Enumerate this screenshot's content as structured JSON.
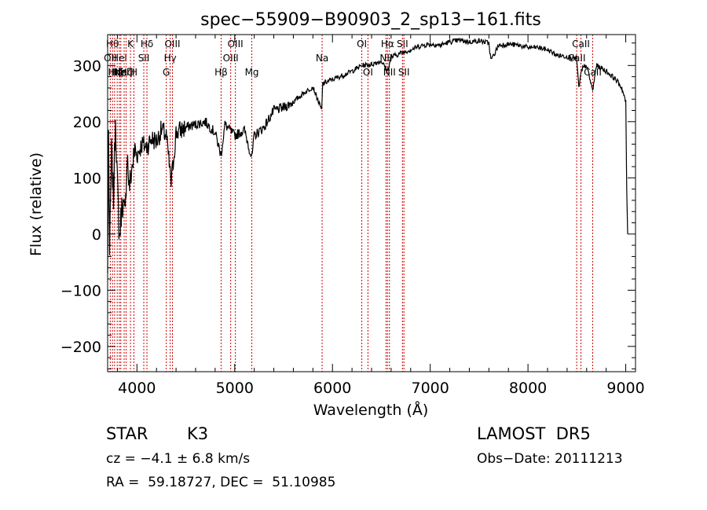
{
  "chart_data": {
    "type": "line",
    "title": "spec−55909−B90903_2_sp13−161.fits",
    "xlabel": "Wavelength (Å)",
    "ylabel": "Flux (relative)",
    "xlim": [
      3700,
      9100
    ],
    "ylim": [
      -245,
      355
    ],
    "x_ticks": [
      4000,
      5000,
      6000,
      7000,
      8000,
      9000
    ],
    "y_ticks": [
      -200,
      -100,
      0,
      100,
      200,
      300
    ],
    "x_tick_labels": [
      "4000",
      "5000",
      "6000",
      "7000",
      "8000",
      "9000"
    ],
    "y_tick_labels": [
      "−200",
      "−100",
      "0",
      "100",
      "200",
      "300"
    ],
    "grid": false,
    "line_color": "#000000",
    "marker_color": "#cc0000",
    "series": [
      {
        "x": [
          3700,
          3710,
          3720,
          3740,
          3760,
          3780,
          3800,
          3820,
          3850,
          3880,
          3900,
          3920,
          3950,
          3980,
          4000,
          4050,
          4100,
          4150,
          4200,
          4250,
          4300,
          4350,
          4400,
          4500,
          4600,
          4700,
          4800,
          4860,
          4900,
          5000,
          5100,
          5175,
          5200,
          5300,
          5400,
          5500,
          5600,
          5700,
          5800,
          5890,
          5900,
          6000,
          6100,
          6200,
          6300,
          6400,
          6500,
          6563,
          6600,
          6700,
          6800,
          6900,
          7000,
          7100,
          7200,
          7300,
          7400,
          7500,
          7600,
          7620,
          7650,
          7700,
          7800,
          7900,
          8000,
          8100,
          8200,
          8300,
          8400,
          8498,
          8520,
          8542,
          8560,
          8600,
          8662,
          8700,
          8800,
          8900,
          8960,
          9000,
          9010,
          9020
        ],
        "y": [
          -70,
          180,
          -40,
          150,
          60,
          210,
          90,
          -10,
          60,
          30,
          150,
          80,
          120,
          150,
          140,
          160,
          155,
          170,
          165,
          185,
          175,
          90,
          180,
          190,
          195,
          200,
          180,
          140,
          195,
          175,
          185,
          135,
          175,
          190,
          220,
          225,
          235,
          250,
          262,
          220,
          268,
          275,
          282,
          290,
          300,
          302,
          308,
          290,
          315,
          322,
          328,
          335,
          338,
          336,
          342,
          345,
          342,
          344,
          340,
          310,
          318,
          336,
          338,
          336,
          332,
          332,
          328,
          318,
          316,
          312,
          260,
          285,
          295,
          300,
          255,
          300,
          290,
          275,
          260,
          235,
          80,
          0
        ]
      }
    ],
    "line_markers": [
      {
        "wl": 3727,
        "label": "OII",
        "row": 2
      },
      {
        "wl": 3750,
        "label": "Hθ",
        "row": 1
      },
      {
        "wl": 3771,
        "label": "Hη",
        "row": 3
      },
      {
        "wl": 3798,
        "label": "Hζ",
        "row": 3
      },
      {
        "wl": 3820,
        "label": "HeI",
        "row": 2
      },
      {
        "wl": 3835,
        "label": "Hη",
        "row": 3
      },
      {
        "wl": 3869,
        "label": "NeIII",
        "row": 3
      },
      {
        "wl": 3889,
        "label": "Hζ",
        "row": 3
      },
      {
        "wl": 3934,
        "label": "K",
        "row": 1
      },
      {
        "wl": 3969,
        "label": "H",
        "row": 3
      },
      {
        "wl": 4070,
        "label": "SII",
        "row": 2
      },
      {
        "wl": 4102,
        "label": "Hδ",
        "row": 1
      },
      {
        "wl": 4300,
        "label": "G",
        "row": 3
      },
      {
        "wl": 4340,
        "label": "Hγ",
        "row": 2
      },
      {
        "wl": 4363,
        "label": "OIII",
        "row": 1
      },
      {
        "wl": 4861,
        "label": "Hβ",
        "row": 3
      },
      {
        "wl": 4959,
        "label": "OIII",
        "row": 2
      },
      {
        "wl": 5007,
        "label": "OIII",
        "row": 1
      },
      {
        "wl": 5175,
        "label": "Mg",
        "row": 3
      },
      {
        "wl": 5894,
        "label": "Na",
        "row": 2
      },
      {
        "wl": 6300,
        "label": "OI",
        "row": 1
      },
      {
        "wl": 6363,
        "label": "OI",
        "row": 3
      },
      {
        "wl": 6548,
        "label": "NII",
        "row": 2
      },
      {
        "wl": 6563,
        "label": "Hα",
        "row": 1
      },
      {
        "wl": 6583,
        "label": "NII",
        "row": 3
      },
      {
        "wl": 6716,
        "label": "SII",
        "row": 1
      },
      {
        "wl": 6731,
        "label": "SII",
        "row": 3
      },
      {
        "wl": 8498,
        "label": "CaII",
        "row": 2
      },
      {
        "wl": 8542,
        "label": "CaII",
        "row": 1
      },
      {
        "wl": 8662,
        "label": "CaII",
        "row": 3
      }
    ]
  },
  "info": {
    "class_label": "STAR",
    "subclass_label": "K3",
    "survey": "LAMOST  DR5",
    "cz_text": "cz = −4.1 ± 6.8 km/s",
    "obs_date": "Obs−Date: 20111213",
    "coords": "RA =  59.18727, DEC =  51.10985"
  }
}
